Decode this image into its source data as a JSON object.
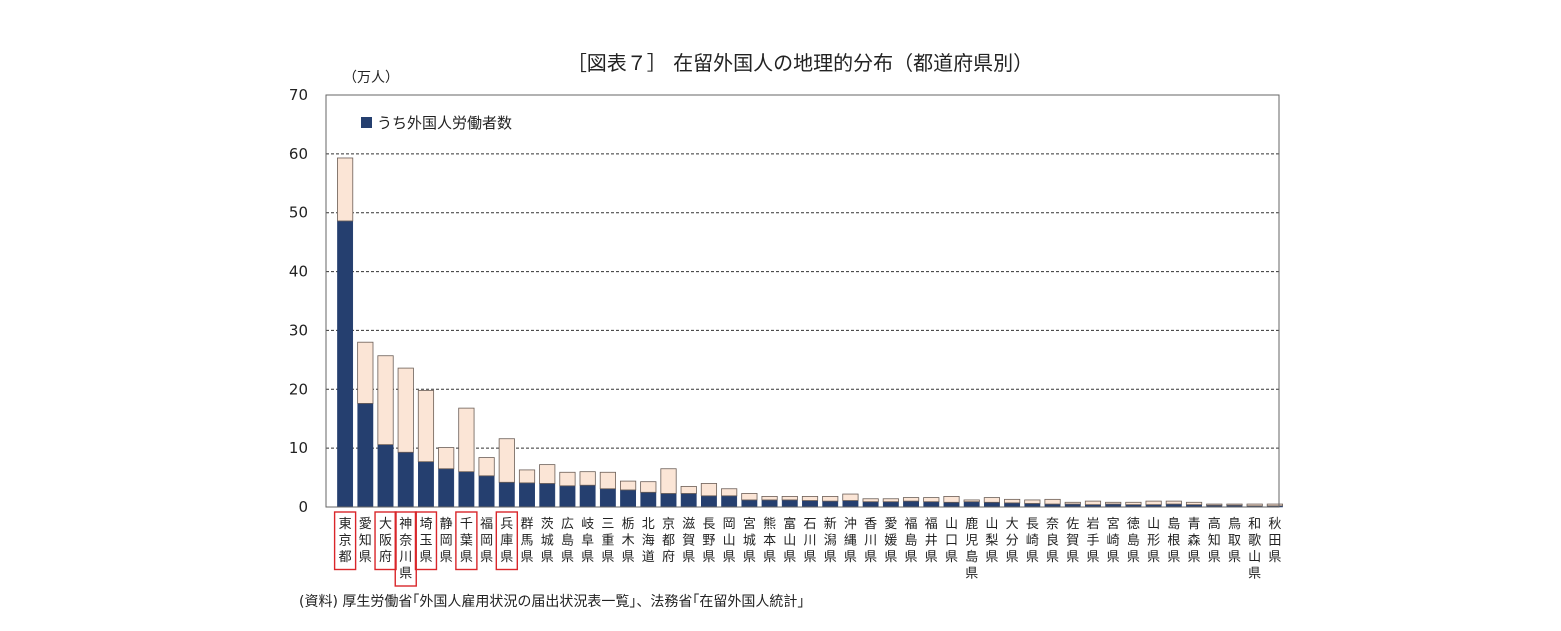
{
  "chart_data": {
    "type": "bar",
    "stacked": true,
    "title": "［図表７］ 在留外国人の地理的分布（都道府県別）",
    "ylabel": "（万人）",
    "xlabel": "",
    "ylim": [
      0,
      70
    ],
    "yticks": [
      0,
      10,
      20,
      30,
      40,
      50,
      60,
      70
    ],
    "grid": "horizontal dotted",
    "legend_placement": "top-left",
    "categories": [
      "東京都",
      "愛知県",
      "大阪府",
      "神奈川県",
      "埼玉県",
      "静岡県",
      "千葉県",
      "福岡県",
      "兵庫県",
      "群馬県",
      "茨城県",
      "広島県",
      "岐阜県",
      "三重県",
      "栃木県",
      "北海道",
      "京都府",
      "滋賀県",
      "長野県",
      "岡山県",
      "宮城県",
      "熊本県",
      "富山県",
      "石川県",
      "新潟県",
      "沖縄県",
      "香川県",
      "愛媛県",
      "福島県",
      "福井県",
      "山口県",
      "鹿児島県",
      "山梨県",
      "大分県",
      "長崎県",
      "奈良県",
      "佐賀県",
      "岩手県",
      "宮崎県",
      "徳島県",
      "山形県",
      "島根県",
      "青森県",
      "高知県",
      "鳥取県",
      "和歌山県",
      "秋田県"
    ],
    "highlighted": [
      "東京都",
      "大阪府",
      "神奈川県",
      "埼玉県",
      "千葉県",
      "兵庫県"
    ],
    "series": [
      {
        "name": "うち外国人労働者数",
        "color": "#253f6f",
        "values": [
          48.6,
          17.6,
          10.6,
          9.3,
          7.7,
          6.5,
          6.0,
          5.3,
          4.2,
          4.1,
          4.0,
          3.6,
          3.7,
          3.1,
          2.9,
          2.5,
          2.3,
          2.3,
          1.9,
          1.9,
          1.2,
          1.2,
          1.2,
          1.1,
          1.0,
          1.1,
          0.9,
          0.9,
          1.0,
          0.9,
          0.8,
          0.9,
          0.8,
          0.7,
          0.6,
          0.5,
          0.5,
          0.4,
          0.5,
          0.4,
          0.4,
          0.5,
          0.4,
          0.3,
          0.3,
          0.2,
          0.2
        ]
      },
      {
        "name": "",
        "color": "#fbe5d6",
        "values": [
          10.7,
          10.4,
          15.1,
          14.3,
          12.1,
          3.6,
          10.8,
          3.1,
          7.4,
          2.2,
          3.2,
          2.3,
          2.3,
          2.8,
          1.5,
          1.8,
          4.2,
          1.2,
          2.1,
          1.2,
          1.1,
          0.6,
          0.6,
          0.7,
          0.8,
          1.1,
          0.5,
          0.5,
          0.6,
          0.7,
          1.0,
          0.3,
          0.8,
          0.6,
          0.6,
          0.8,
          0.3,
          0.6,
          0.3,
          0.4,
          0.6,
          0.5,
          0.4,
          0.2,
          0.2,
          0.3,
          0.3
        ]
      }
    ]
  },
  "source_note": "(資料) 厚生労働省｢外国人雇用状況の届出状況表一覧｣、法務省｢在留外国人統計｣"
}
